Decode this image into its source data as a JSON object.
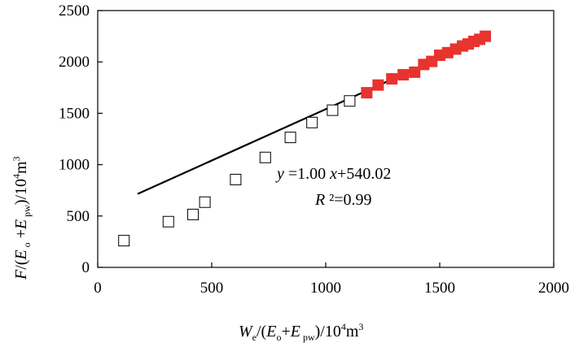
{
  "chart_data": {
    "type": "scatter",
    "xlabel": "W_e/(E_o+E_pw)/10^4m^3",
    "ylabel": "F/(E_o+E_pw)/10^4m^3",
    "xlim": [
      0,
      2000
    ],
    "ylim": [
      0,
      2500
    ],
    "x_ticks": [
      "0",
      "500",
      "1000",
      "1500",
      "2000"
    ],
    "y_ticks": [
      "0",
      "500",
      "1000",
      "1500",
      "2000",
      "2500"
    ],
    "grid": false,
    "series": [
      {
        "marker": "hollow-square",
        "color": "#000000",
        "points": [
          {
            "x": 115,
            "y": 260
          },
          {
            "x": 310,
            "y": 445
          },
          {
            "x": 418,
            "y": 515
          },
          {
            "x": 470,
            "y": 635
          },
          {
            "x": 605,
            "y": 855
          },
          {
            "x": 735,
            "y": 1070
          },
          {
            "x": 845,
            "y": 1265
          },
          {
            "x": 940,
            "y": 1410
          },
          {
            "x": 1030,
            "y": 1530
          },
          {
            "x": 1105,
            "y": 1620
          }
        ]
      },
      {
        "marker": "filled-square",
        "color": "#e8332e",
        "points": [
          {
            "x": 1180,
            "y": 1700
          },
          {
            "x": 1230,
            "y": 1775
          },
          {
            "x": 1290,
            "y": 1835
          },
          {
            "x": 1340,
            "y": 1875
          },
          {
            "x": 1390,
            "y": 1900
          },
          {
            "x": 1430,
            "y": 1975
          },
          {
            "x": 1465,
            "y": 2005
          },
          {
            "x": 1500,
            "y": 2065
          },
          {
            "x": 1535,
            "y": 2090
          },
          {
            "x": 1570,
            "y": 2125
          },
          {
            "x": 1600,
            "y": 2155
          },
          {
            "x": 1625,
            "y": 2175
          },
          {
            "x": 1650,
            "y": 2200
          },
          {
            "x": 1675,
            "y": 2220
          },
          {
            "x": 1700,
            "y": 2250
          }
        ]
      }
    ],
    "fit_line": {
      "slope": 1.0,
      "intercept": 540.02,
      "x_range": [
        175,
        1700
      ],
      "color": "#000000"
    },
    "annotations": {
      "equation": "y =1.00 x+540.02",
      "r_squared": "R ²=0.99"
    }
  }
}
